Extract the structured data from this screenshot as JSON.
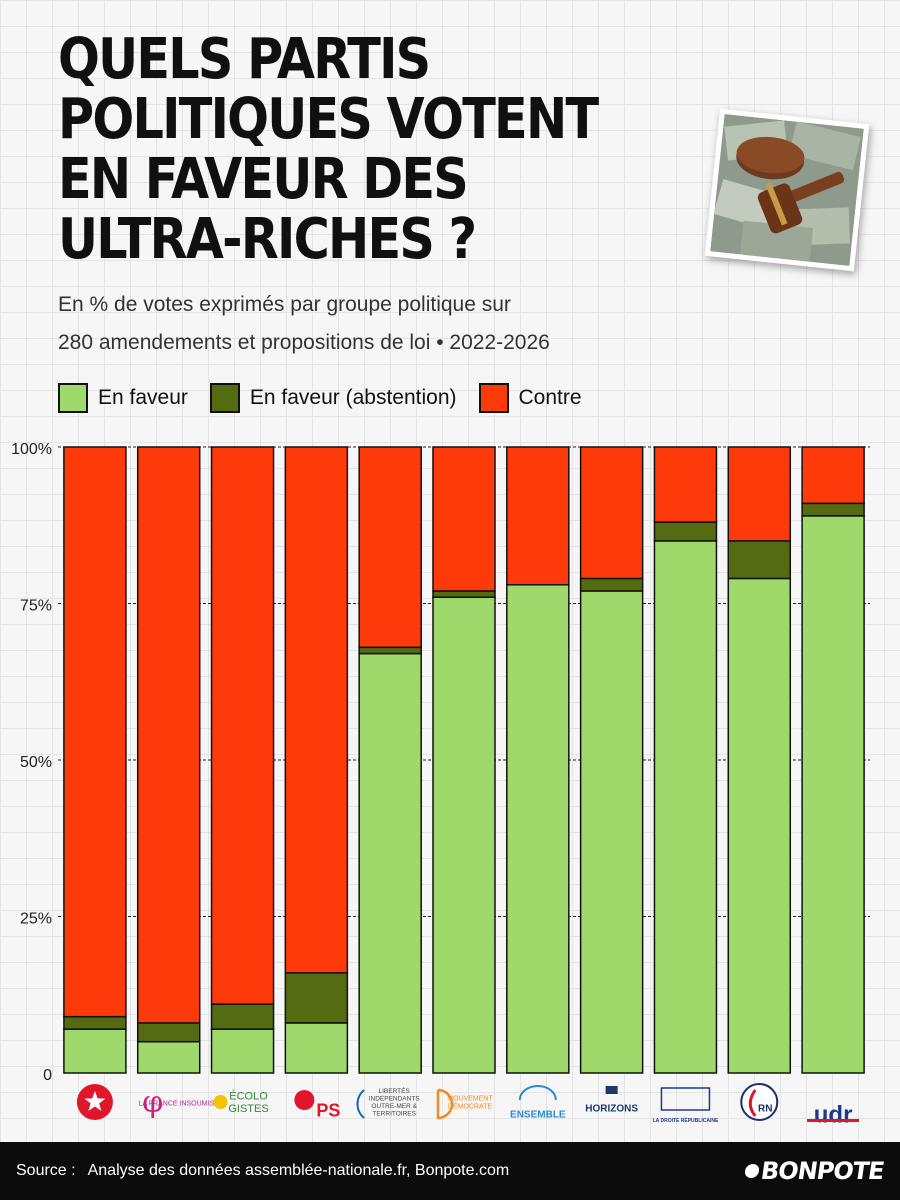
{
  "header": {
    "title_lines": [
      "QUELS PARTIS",
      "POLITIQUES VOTENT",
      "EN FAVEUR DES",
      "ULTRA-RICHES ?"
    ],
    "subtitle_lines": [
      "En % de votes exprimés par groupe politique sur",
      "280 amendements et propositions de loi • 2022-2026"
    ]
  },
  "colors": {
    "favor": "#9fd86b",
    "abstention": "#556b12",
    "against": "#ff3a0a",
    "outline": "#111111"
  },
  "legend": {
    "favor": "En faveur",
    "abstention": "En faveur (abstention)",
    "against": "Contre"
  },
  "chart_data": {
    "type": "bar",
    "stacked": true,
    "categories": [
      "Gauche Démocrate et Républicaine",
      "La France Insoumise",
      "Écologistes",
      "Socialistes",
      "Libertés Indépendants Outre-mer & Territoires",
      "Mouvement Démocrate",
      "Ensemble pour la République",
      "Horizons & Indépendants",
      "La Droite Républicaine",
      "RN",
      "Groupe UDR"
    ],
    "category_short": [
      "",
      "LA FRANCE INSOUMISE",
      "ÉCOLO GISTES",
      "PS",
      "LIBERTÉS INDÉPENDANTS OUTRE-MER & TERRITOIRES",
      "MOUVEMENT DÉMOCRATE",
      "ENSEMBLE",
      "HORIZONS",
      "LA DROITE RÉPUBLICAINE",
      "RN",
      "udr"
    ],
    "series": [
      {
        "name": "En faveur",
        "values": [
          7,
          5,
          7,
          8,
          67,
          76,
          78,
          77,
          85,
          79,
          89
        ]
      },
      {
        "name": "En faveur (abstention)",
        "values": [
          2,
          3,
          4,
          8,
          1,
          1,
          0,
          2,
          3,
          6,
          2
        ]
      },
      {
        "name": "Contre",
        "values": [
          91,
          92,
          89,
          84,
          32,
          23,
          22,
          21,
          12,
          15,
          9
        ]
      }
    ],
    "y_ticks": [
      "0",
      "25%",
      "50%",
      "75%",
      "100%"
    ],
    "ylim": [
      0,
      100
    ],
    "grid": true,
    "legend_position": "top-left"
  },
  "footer": {
    "source_label": "Source :",
    "source_text": "Analyse des données assemblée-nationale.fr, Bonpote.com",
    "brand": "BONPOTE"
  }
}
